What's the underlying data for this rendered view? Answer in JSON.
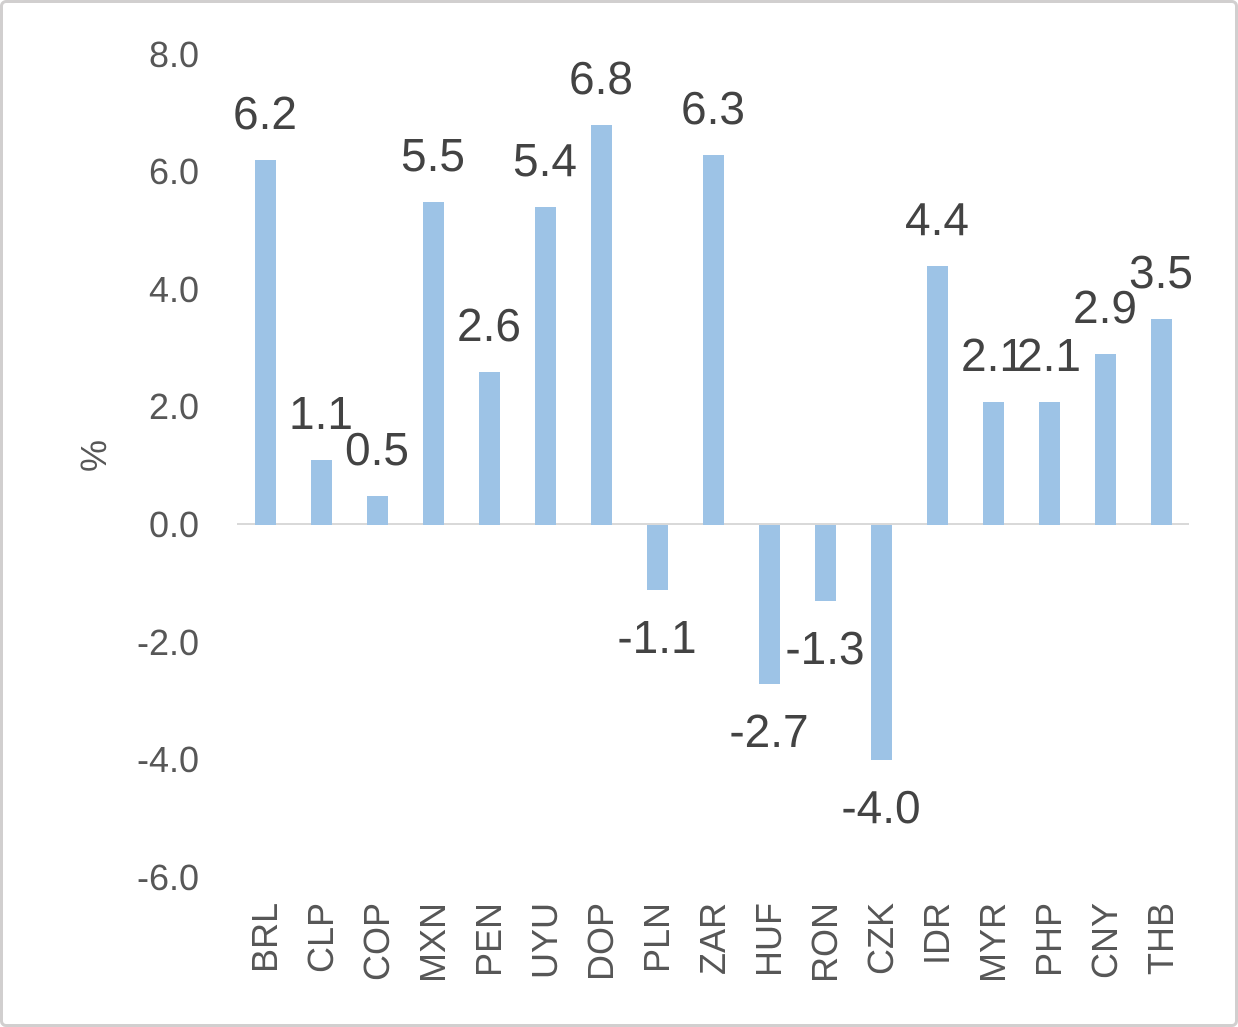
{
  "chart_data": {
    "type": "bar",
    "title": "",
    "xlabel": "",
    "ylabel": "%",
    "categories": [
      "BRL",
      "CLP",
      "COP",
      "MXN",
      "PEN",
      "UYU",
      "DOP",
      "PLN",
      "ZAR",
      "HUF",
      "RON",
      "CZK",
      "IDR",
      "MYR",
      "PHP",
      "CNY",
      "THB"
    ],
    "values": [
      6.2,
      1.1,
      0.5,
      5.5,
      2.6,
      5.4,
      6.8,
      -1.1,
      6.3,
      -2.7,
      -1.3,
      -4.0,
      4.4,
      2.1,
      2.1,
      2.9,
      3.5
    ],
    "value_labels": [
      "6.2",
      "1.1",
      "0.5",
      "5.5",
      "2.6",
      "5.4",
      "6.8",
      "-1.1",
      "6.3",
      "-2.7",
      "-1.3",
      "-4.0",
      "4.4",
      "2.1",
      "2.1",
      "2.9",
      "3.5"
    ],
    "y_ticks": [
      {
        "label": "8.0",
        "value": 8
      },
      {
        "label": "6.0",
        "value": 6
      },
      {
        "label": "4.0",
        "value": 4
      },
      {
        "label": "2.0",
        "value": 2
      },
      {
        "label": "0.0",
        "value": 0
      },
      {
        "label": "-2.0",
        "value": -2
      },
      {
        "label": "-4.0",
        "value": -4
      },
      {
        "label": "-6.0",
        "value": -6
      }
    ],
    "ylim": [
      -6,
      8
    ],
    "grid": "off",
    "legend": "none",
    "colors": {
      "bar": "#9DC3E6",
      "axis_line": "#D9D9D9",
      "tick_text": "#575757",
      "data_label_text": "#434343",
      "frame_border": "#D1CFCF",
      "background": "#FFFFFF"
    }
  }
}
